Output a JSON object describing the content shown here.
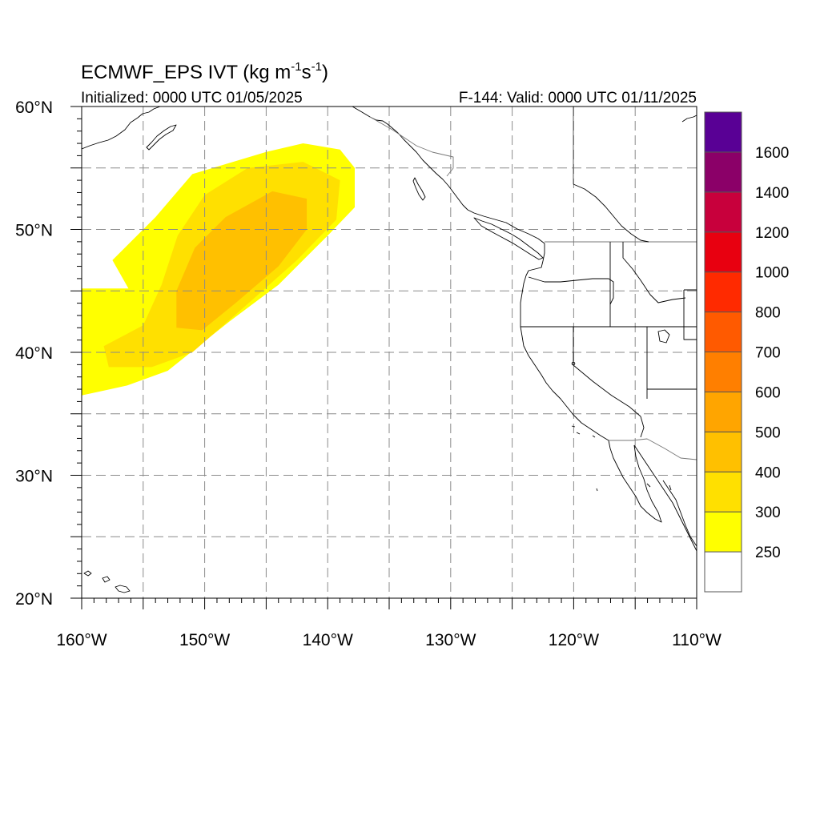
{
  "header": {
    "title_main": "ECMWF_EPS IVT (kg m",
    "title_sup1": "-1",
    "title_mid": "s",
    "title_sup2": "-1",
    "title_end": ")",
    "init_text": "Initialized: 0000 UTC 01/05/2025",
    "valid_text": "F-144: Valid: 0000 UTC 01/11/2025"
  },
  "map": {
    "lon_range": [
      -160,
      -110
    ],
    "lat_range": [
      20,
      60
    ],
    "x_ticks": [
      {
        "lon": -160,
        "label": "160°W"
      },
      {
        "lon": -150,
        "label": "150°W"
      },
      {
        "lon": -140,
        "label": "140°W"
      },
      {
        "lon": -130,
        "label": "130°W"
      },
      {
        "lon": -120,
        "label": "120°W"
      },
      {
        "lon": -110,
        "label": "110°W"
      }
    ],
    "y_ticks": [
      {
        "lat": 20,
        "label": "20°N"
      },
      {
        "lat": 30,
        "label": "30°N"
      },
      {
        "lat": 40,
        "label": "40°N"
      },
      {
        "lat": 50,
        "label": "50°N"
      },
      {
        "lat": 60,
        "label": "60°N"
      }
    ],
    "gridlines": "dashed every 5 degrees",
    "ivt_plume": [
      {
        "level": 250,
        "color": "#ffff00",
        "approx_lon_lat": [
          [
            -160,
            45.2
          ],
          [
            -156.2,
            45.2
          ],
          [
            -157.5,
            47.5
          ],
          [
            -154,
            51
          ],
          [
            -151,
            54.5
          ],
          [
            -145,
            56.3
          ],
          [
            -142,
            57
          ],
          [
            -139,
            56.5
          ],
          [
            -137.8,
            55
          ],
          [
            -137.8,
            51.8
          ],
          [
            -140,
            49.5
          ],
          [
            -144,
            45.5
          ],
          [
            -148,
            42.5
          ],
          [
            -153,
            38.5
          ],
          [
            -156.3,
            37.3
          ],
          [
            -158.6,
            36.8
          ],
          [
            -160,
            36.5
          ]
        ]
      },
      {
        "level": 300,
        "color": "#ffe000",
        "approx_lon_lat": [
          [
            -158.2,
            40.5
          ],
          [
            -155,
            42.2
          ],
          [
            -153.5,
            45.5
          ],
          [
            -152.2,
            49.5
          ],
          [
            -150,
            52.8
          ],
          [
            -146.5,
            55
          ],
          [
            -142,
            55.5
          ],
          [
            -139,
            54
          ],
          [
            -139.3,
            50.8
          ],
          [
            -142.5,
            47.5
          ],
          [
            -147,
            43.5
          ],
          [
            -151,
            40
          ],
          [
            -154.3,
            38.8
          ],
          [
            -157.8,
            38.8
          ]
        ]
      },
      {
        "level": 400,
        "color": "#ffc000",
        "approx_lon_lat": [
          [
            -152.3,
            42
          ],
          [
            -152.3,
            45
          ],
          [
            -150.8,
            48.5
          ],
          [
            -148.3,
            51
          ],
          [
            -144.5,
            53.1
          ],
          [
            -141.7,
            52.5
          ],
          [
            -141.7,
            50
          ],
          [
            -144,
            47
          ],
          [
            -147.5,
            44
          ],
          [
            -150.2,
            41.8
          ]
        ]
      }
    ],
    "features": [
      "US state boundaries",
      "Canada/US border",
      "Mexico/US border",
      "Pacific coastline",
      "Hawaiian Islands",
      "Alaska coastline"
    ]
  },
  "colorbar": {
    "colors": [
      "#ffffff",
      "#ffff00",
      "#ffe000",
      "#ffc000",
      "#ffa500",
      "#ff7f00",
      "#ff5a00",
      "#ff2a00",
      "#e80010",
      "#c8003c",
      "#8b0068",
      "#590095"
    ],
    "labels": [
      "250",
      "300",
      "400",
      "500",
      "600",
      "700",
      "800",
      "1000",
      "1200",
      "1400",
      "1600"
    ]
  }
}
